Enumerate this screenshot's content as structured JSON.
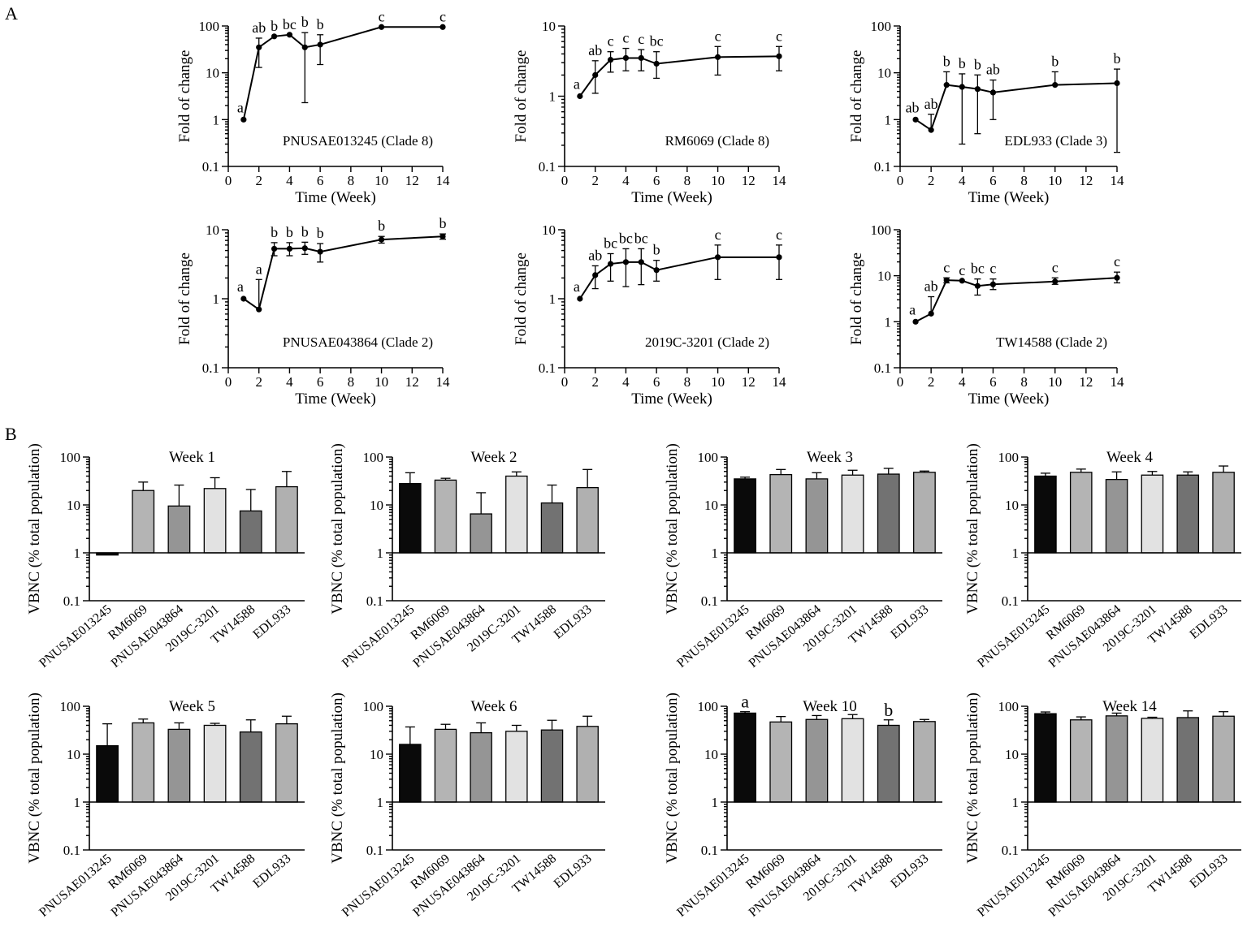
{
  "panel_labels": {
    "A": "A",
    "B": "B"
  },
  "colors": {
    "PNUSAE013245": "#0a0a0a",
    "RM6069": "#b4b4b4",
    "PNUSAE043864": "#959595",
    "2019C-3201": "#e2e2e2",
    "TW14588": "#727272",
    "EDL933": "#b0b0b0"
  },
  "chart_data": [
    {
      "type": "line",
      "id": "a1",
      "title": "PNUSAE013245 (Clade 8)",
      "xlabel": "Time (Week)",
      "ylabel": "Fold of change",
      "xlim": [
        0,
        14
      ],
      "ylim": [
        0.1,
        100
      ],
      "yscale": "log",
      "x_ticks": [
        "0",
        "2",
        "4",
        "6",
        "8",
        "10",
        "12",
        "14"
      ],
      "y_ticks": [
        "0.1",
        "1",
        "10",
        "100"
      ],
      "x": [
        1,
        2,
        3,
        4,
        5,
        6,
        10,
        14
      ],
      "values": [
        1,
        35,
        60,
        65,
        35,
        40,
        95,
        95
      ],
      "err_hi": [
        null,
        55,
        null,
        null,
        72,
        65,
        null,
        null
      ],
      "err_lo": [
        null,
        13,
        null,
        null,
        2.3,
        15,
        null,
        null
      ],
      "letters": [
        "a",
        "ab",
        "b",
        "bc",
        "b",
        "b",
        "c",
        "c"
      ]
    },
    {
      "type": "line",
      "id": "a2",
      "title": "RM6069 (Clade 8)",
      "xlabel": "Time (Week)",
      "ylabel": "Fold of change",
      "xlim": [
        0,
        14
      ],
      "ylim": [
        0.1,
        10
      ],
      "yscale": "log",
      "x_ticks": [
        "0",
        "2",
        "4",
        "6",
        "8",
        "10",
        "12",
        "14"
      ],
      "y_ticks": [
        "0.1",
        "1",
        "10"
      ],
      "x": [
        1,
        2,
        3,
        4,
        5,
        6,
        10,
        14
      ],
      "values": [
        1,
        2,
        3.3,
        3.5,
        3.5,
        2.9,
        3.6,
        3.7
      ],
      "err_hi": [
        null,
        3.2,
        4.3,
        4.8,
        4.6,
        4.3,
        5.1,
        5.1
      ],
      "err_lo": [
        null,
        1.1,
        2.2,
        2.3,
        2.3,
        1.8,
        2,
        2.3
      ],
      "letters": [
        "a",
        "ab",
        "c",
        "c",
        "c",
        "bc",
        "c",
        "c"
      ]
    },
    {
      "type": "line",
      "id": "a3",
      "title": "EDL933 (Clade 3)",
      "xlabel": "Time (Week)",
      "ylabel": "Fold of change",
      "xlim": [
        0,
        14
      ],
      "ylim": [
        0.1,
        100
      ],
      "yscale": "log",
      "x_ticks": [
        "0",
        "2",
        "4",
        "6",
        "8",
        "10",
        "12",
        "14"
      ],
      "y_ticks": [
        "0.1",
        "1",
        "10",
        "100"
      ],
      "x": [
        1,
        2,
        3,
        4,
        5,
        6,
        10,
        14
      ],
      "values": [
        1,
        0.6,
        5.5,
        5,
        4.5,
        3.8,
        5.5,
        6
      ],
      "err_hi": [
        null,
        1.3,
        10.5,
        9.5,
        9,
        7,
        10.5,
        12
      ],
      "err_lo": [
        null,
        null,
        null,
        0.3,
        0.5,
        1,
        null,
        0.2
      ],
      "letters": [
        "ab",
        "ab",
        "b",
        "b",
        "b",
        "ab",
        "b",
        "b"
      ]
    },
    {
      "type": "line",
      "id": "a4",
      "title": "PNUSAE043864 (Clade 2)",
      "xlabel": "Time (Week)",
      "ylabel": "Fold of change",
      "xlim": [
        0,
        14
      ],
      "ylim": [
        0.1,
        10
      ],
      "yscale": "log",
      "x_ticks": [
        "0",
        "2",
        "4",
        "6",
        "8",
        "10",
        "12",
        "14"
      ],
      "y_ticks": [
        "0.1",
        "1",
        "10"
      ],
      "x": [
        1,
        2,
        3,
        4,
        5,
        6,
        10,
        14
      ],
      "values": [
        1,
        0.7,
        5.3,
        5.3,
        5.4,
        4.8,
        7.2,
        8
      ],
      "err_hi": [
        null,
        1.9,
        6.5,
        6.5,
        6.6,
        6.3,
        8,
        8.7
      ],
      "err_lo": [
        null,
        null,
        4.2,
        4.2,
        4.4,
        3.4,
        6.4,
        7.3
      ],
      "letters": [
        "a",
        "a",
        "b",
        "b",
        "b",
        "b",
        "b",
        "b"
      ]
    },
    {
      "type": "line",
      "id": "a5",
      "title": "2019C-3201 (Clade 2)",
      "xlabel": "Time (Week)",
      "ylabel": "Fold of change",
      "xlim": [
        0,
        14
      ],
      "ylim": [
        0.1,
        10
      ],
      "yscale": "log",
      "x_ticks": [
        "0",
        "2",
        "4",
        "6",
        "8",
        "10",
        "12",
        "14"
      ],
      "y_ticks": [
        "0.1",
        "1",
        "10"
      ],
      "x": [
        1,
        2,
        3,
        4,
        5,
        6,
        10,
        14
      ],
      "values": [
        1,
        2.2,
        3.2,
        3.4,
        3.4,
        2.6,
        4,
        4
      ],
      "err_hi": [
        null,
        3,
        4.5,
        5.3,
        5.3,
        3.6,
        6,
        6
      ],
      "err_lo": [
        null,
        1.4,
        1.8,
        1.5,
        1.6,
        1.8,
        1.9,
        1.9
      ],
      "letters": [
        "a",
        "ab",
        "bc",
        "bc",
        "bc",
        "b",
        "c",
        "c"
      ]
    },
    {
      "type": "line",
      "id": "a6",
      "title": "TW14588 (Clade 2)",
      "xlabel": "Time (Week)",
      "ylabel": "Fold of change",
      "xlim": [
        0,
        14
      ],
      "ylim": [
        0.1,
        100
      ],
      "yscale": "log",
      "x_ticks": [
        "0",
        "2",
        "4",
        "6",
        "8",
        "10",
        "12",
        "14"
      ],
      "y_ticks": [
        "0.1",
        "1",
        "10",
        "100"
      ],
      "x": [
        1,
        2,
        3,
        4,
        5,
        6,
        10,
        14
      ],
      "values": [
        1,
        1.5,
        8,
        7.8,
        6,
        6.5,
        7.5,
        9
      ],
      "err_hi": [
        null,
        3.5,
        9,
        null,
        8.5,
        8.5,
        9,
        12
      ],
      "err_lo": [
        null,
        null,
        7,
        null,
        3.8,
        5,
        6.5,
        7
      ],
      "letters": [
        "a",
        "ab",
        "c",
        "c",
        "bc",
        "c",
        "c",
        "c"
      ]
    },
    {
      "type": "bar",
      "id": "b1",
      "title": "Week 1",
      "ylabel": "VBNC (% total population)",
      "ylim": [
        0.1,
        100
      ],
      "yscale": "log",
      "y_ticks": [
        "0.1",
        "1",
        "10",
        "100"
      ],
      "categories": [
        "PNUSAE013245",
        "RM6069",
        "PNUSAE043864",
        "2019C-3201",
        "TW14588",
        "EDL933"
      ],
      "values": [
        0.9,
        20,
        9.5,
        22,
        7.5,
        24
      ],
      "err": [
        null,
        30,
        26,
        37,
        21,
        50
      ],
      "letters": []
    },
    {
      "type": "bar",
      "id": "b2",
      "title": "Week 2",
      "ylabel": "VBNC (% total population)",
      "ylim": [
        0.1,
        100
      ],
      "yscale": "log",
      "y_ticks": [
        "0.1",
        "1",
        "10",
        "100"
      ],
      "categories": [
        "PNUSAE013245",
        "RM6069",
        "PNUSAE043864",
        "2019C-3201",
        "TW14588",
        "EDL933"
      ],
      "values": [
        28,
        33,
        6.5,
        40,
        11,
        23
      ],
      "err": [
        47,
        36,
        18,
        49,
        26,
        55
      ],
      "letters": []
    },
    {
      "type": "bar",
      "id": "b3",
      "title": "Week 3",
      "ylabel": "VBNC (% total population)",
      "ylim": [
        0.1,
        100
      ],
      "yscale": "log",
      "y_ticks": [
        "0.1",
        "1",
        "10",
        "100"
      ],
      "categories": [
        "PNUSAE013245",
        "RM6069",
        "PNUSAE043864",
        "2019C-3201",
        "TW14588",
        "EDL933"
      ],
      "values": [
        35,
        43,
        35,
        42,
        44,
        48
      ],
      "err": [
        38,
        55,
        47,
        53,
        58,
        51
      ],
      "letters": []
    },
    {
      "type": "bar",
      "id": "b4",
      "title": "Week 4",
      "ylabel": "VBNC (% total population)",
      "ylim": [
        0.1,
        100
      ],
      "yscale": "log",
      "y_ticks": [
        "0.1",
        "1",
        "10",
        "100"
      ],
      "categories": [
        "PNUSAE013245",
        "RM6069",
        "PNUSAE043864",
        "2019C-3201",
        "TW14588",
        "EDL933"
      ],
      "values": [
        40,
        48,
        34,
        42,
        42,
        48
      ],
      "err": [
        46,
        56,
        49,
        50,
        49,
        65
      ],
      "letters": []
    },
    {
      "type": "bar",
      "id": "b5",
      "title": "Week 5",
      "ylabel": "VBNC (% total population)",
      "ylim": [
        0.1,
        100
      ],
      "yscale": "log",
      "y_ticks": [
        "0.1",
        "1",
        "10",
        "100"
      ],
      "categories": [
        "PNUSAE013245",
        "RM6069",
        "PNUSAE043864",
        "2019C-3201",
        "TW14588",
        "EDL933"
      ],
      "values": [
        15,
        45,
        33,
        40,
        29,
        43
      ],
      "err": [
        43,
        54,
        45,
        44,
        52,
        62
      ],
      "letters": []
    },
    {
      "type": "bar",
      "id": "b6",
      "title": "Week 6",
      "ylabel": "VBNC (% total population)",
      "ylim": [
        0.1,
        100
      ],
      "yscale": "log",
      "y_ticks": [
        "0.1",
        "1",
        "10",
        "100"
      ],
      "categories": [
        "PNUSAE013245",
        "RM6069",
        "PNUSAE043864",
        "2019C-3201",
        "TW14588",
        "EDL933"
      ],
      "values": [
        16,
        33,
        28,
        30,
        32,
        38
      ],
      "err": [
        37,
        42,
        45,
        40,
        51,
        62
      ],
      "letters": []
    },
    {
      "type": "bar",
      "id": "b7",
      "title": "Week 10",
      "ylabel": "VBNC (% total population)",
      "ylim": [
        0.1,
        100
      ],
      "yscale": "log",
      "y_ticks": [
        "0.1",
        "1",
        "10",
        "100"
      ],
      "categories": [
        "PNUSAE013245",
        "RM6069",
        "PNUSAE043864",
        "2019C-3201",
        "TW14588",
        "EDL933"
      ],
      "values": [
        72,
        47,
        53,
        55,
        40,
        48
      ],
      "err": [
        77,
        61,
        64,
        67,
        52,
        53
      ],
      "letters": [
        "a",
        "",
        "",
        "",
        "b",
        ""
      ]
    },
    {
      "type": "bar",
      "id": "b8",
      "title": "Week 14",
      "ylabel": "VBNC (% total population)",
      "ylim": [
        0.1,
        100
      ],
      "yscale": "log",
      "y_ticks": [
        "0.1",
        "1",
        "10",
        "100"
      ],
      "categories": [
        "PNUSAE013245",
        "RM6069",
        "PNUSAE043864",
        "2019C-3201",
        "TW14588",
        "EDL933"
      ],
      "values": [
        70,
        52,
        63,
        56,
        58,
        62
      ],
      "err": [
        76,
        60,
        72,
        59,
        80,
        77
      ],
      "letters": []
    }
  ]
}
